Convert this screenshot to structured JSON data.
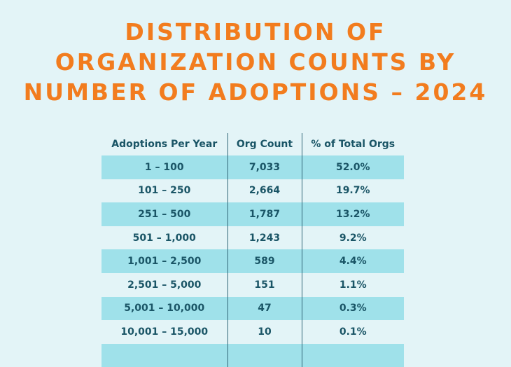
{
  "chart_data": {
    "type": "table",
    "title_lines": [
      "DISTRIBUTION OF",
      "ORGANIZATION COUNTS BY",
      "NUMBER OF ADOPTIONS – 2024"
    ],
    "columns": [
      "Adoptions Per Year",
      "Org Count",
      "% of Total Orgs"
    ],
    "rows": [
      [
        "1 – 100",
        "7,033",
        "52.0%"
      ],
      [
        "101 – 250",
        "2,664",
        "19.7%"
      ],
      [
        "251 – 500",
        "1,787",
        "13.2%"
      ],
      [
        "501 – 1,000",
        "1,243",
        "9.2%"
      ],
      [
        "1,001 – 2,500",
        "589",
        "4.4%"
      ],
      [
        "2,501 – 5,000",
        "151",
        "1.1%"
      ],
      [
        "5,001 – 10,000",
        "47",
        "0.3%"
      ],
      [
        "10,001 – 15,000",
        "10",
        "0.1%"
      ]
    ]
  },
  "colors": {
    "background": "#e3f4f7",
    "title": "#f27c1e",
    "text": "#1a5566",
    "row_shade": "#9fe1ea"
  }
}
